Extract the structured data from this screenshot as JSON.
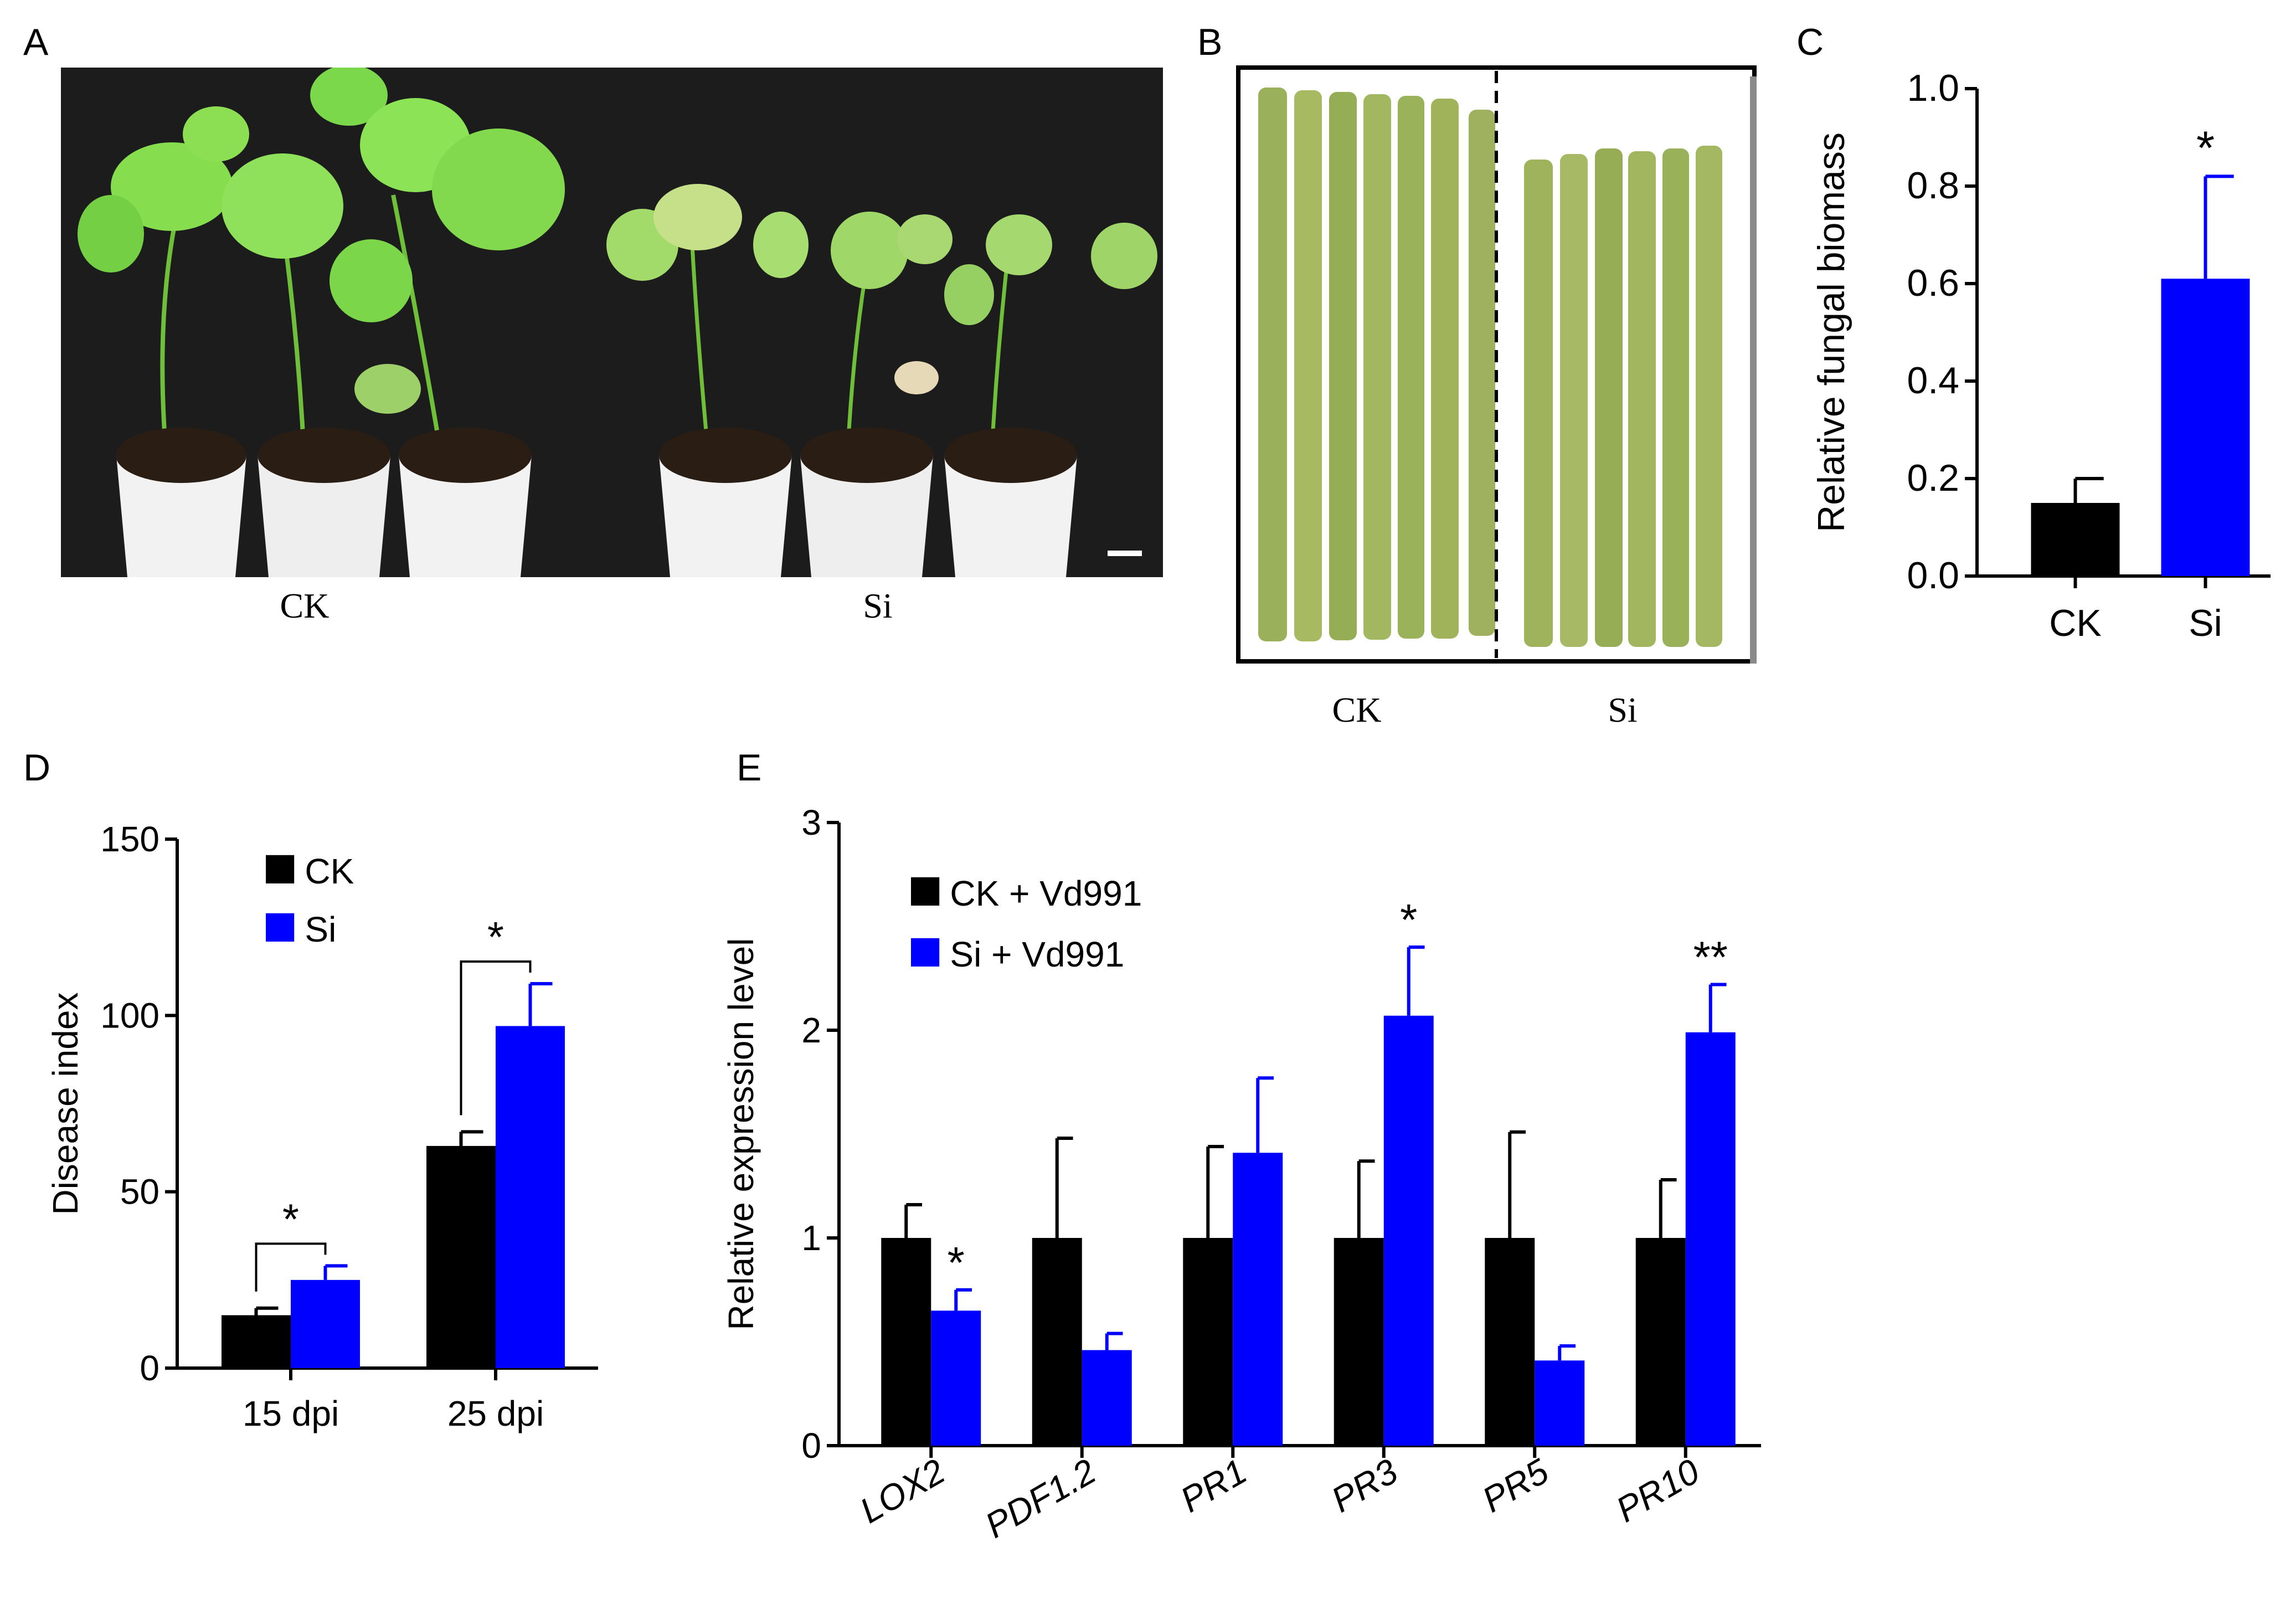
{
  "panels": {
    "A": {
      "letter": "A",
      "groups": [
        "CK",
        "Si"
      ]
    },
    "B": {
      "letter": "B",
      "groups": [
        "CK",
        "Si"
      ]
    },
    "C": {
      "letter": "C"
    },
    "D": {
      "letter": "D"
    },
    "E": {
      "letter": "E"
    }
  },
  "colors": {
    "ck": "#000000",
    "si": "#0000ff",
    "background_photo": "#1c1c1c",
    "leaf": "#7ed957",
    "pot": "#f2f2f2"
  },
  "chart_data": [
    {
      "id": "C",
      "type": "bar",
      "categories": [
        "CK",
        "Si"
      ],
      "values": [
        0.15,
        0.61
      ],
      "errors": [
        0.05,
        0.21
      ],
      "bar_colors": [
        "#000000",
        "#0000ff"
      ],
      "significance": [
        "",
        "*"
      ],
      "ylabel": "Relative fungal biomass",
      "ylim": [
        0,
        1.0
      ],
      "yticks": [
        "0.0",
        "0.2",
        "0.4",
        "0.6",
        "0.8",
        "1.0"
      ]
    },
    {
      "id": "D",
      "type": "bar",
      "categories": [
        "15 dpi",
        "25 dpi"
      ],
      "series": [
        {
          "name": "CK",
          "color": "#000000",
          "values": [
            15,
            63
          ],
          "errors": [
            2,
            4
          ]
        },
        {
          "name": "Si",
          "color": "#0000ff",
          "values": [
            25,
            97
          ],
          "errors": [
            4,
            12
          ]
        }
      ],
      "significance": [
        "*",
        "*"
      ],
      "ylabel": "Disease index",
      "ylim": [
        0,
        150
      ],
      "yticks": [
        "0",
        "50",
        "100",
        "150"
      ],
      "legend": "top-left"
    },
    {
      "id": "E",
      "type": "bar",
      "categories": [
        "LOX2",
        "PDF1.2",
        "PR1",
        "PR3",
        "PR5",
        "PR10"
      ],
      "series": [
        {
          "name": "CK + Vd991",
          "color": "#000000",
          "values": [
            1.0,
            1.0,
            1.0,
            1.0,
            1.0,
            1.0
          ],
          "errors": [
            0.16,
            0.48,
            0.44,
            0.37,
            0.51,
            0.28
          ]
        },
        {
          "name": "Si + Vd991",
          "color": "#0000ff",
          "values": [
            0.65,
            0.46,
            1.41,
            2.07,
            0.41,
            1.99
          ],
          "errors": [
            0.1,
            0.08,
            0.36,
            0.33,
            0.07,
            0.23
          ]
        }
      ],
      "significance": [
        "*",
        "",
        "",
        "*",
        "",
        "**"
      ],
      "ylabel": "Relative expression level",
      "ylim": [
        0,
        3
      ],
      "yticks": [
        "0",
        "1",
        "2",
        "3"
      ],
      "legend": "top-left",
      "italic_categories": true
    }
  ]
}
